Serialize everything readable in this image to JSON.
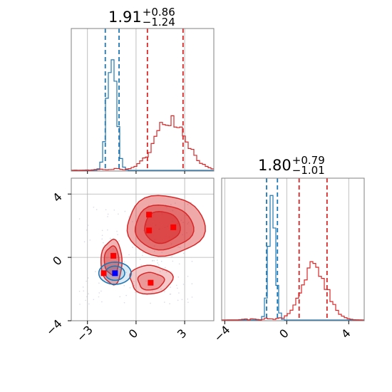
{
  "chart_data": [
    {
      "type": "histogram",
      "panel": "top-left",
      "title": {
        "value": "1.91",
        "upper": "+0.86",
        "lower": "−1.24"
      },
      "x_range": [
        -4.0,
        4.8
      ],
      "series": [
        {
          "name": "",
          "color": "#1f77b4",
          "quantile_lines": [
            -1.9,
            -1.05
          ],
          "peak": -1.5,
          "width": 0.28
        },
        {
          "name": "",
          "color": "#d62728",
          "quantile_lines": [
            0.7,
            2.9
          ],
          "peak": 2.15,
          "width": 0.95
        }
      ],
      "grid": true
    },
    {
      "type": "contour",
      "panel": "bottom-left",
      "x_range": [
        -4.0,
        4.8
      ],
      "y_range": [
        -4.0,
        5.0
      ],
      "x_ticks": [
        "−3",
        "0",
        "3"
      ],
      "x_tick_values": [
        -3,
        0,
        3
      ],
      "y_ticks": [
        "−4",
        "0",
        "4"
      ],
      "y_tick_values": [
        -4,
        0,
        4
      ],
      "red_markers": [
        [
          0.8,
          2.7
        ],
        [
          0.8,
          1.7
        ],
        [
          2.3,
          1.9
        ],
        [
          -1.4,
          0.1
        ],
        [
          -2.0,
          -1.0
        ],
        [
          0.9,
          -1.6
        ]
      ],
      "blue_markers": [
        [
          -1.3,
          -1.0
        ]
      ],
      "grid": true
    },
    {
      "type": "histogram",
      "panel": "bottom-right",
      "title": {
        "value": "1.80",
        "upper": "+0.79",
        "lower": "−1.01"
      },
      "x_range": [
        -4.2,
        5.0
      ],
      "x_ticks": [
        "−4",
        "0",
        "4"
      ],
      "x_tick_values": [
        -4,
        0,
        4
      ],
      "series": [
        {
          "name": "",
          "color": "#1f77b4",
          "quantile_lines": [
            -1.3,
            -0.6
          ],
          "peak": -0.95,
          "width": 0.22
        },
        {
          "name": "",
          "color": "#d62728",
          "quantile_lines": [
            0.8,
            2.6
          ],
          "peak": 1.8,
          "width": 0.8
        }
      ],
      "grid": true
    }
  ]
}
